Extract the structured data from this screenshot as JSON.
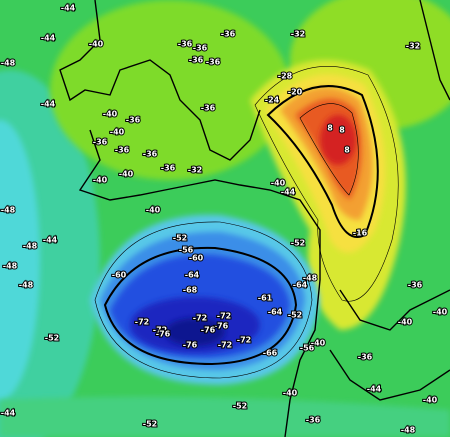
{
  "map": {
    "labels": [
      "-44",
      "-44",
      "-40",
      "-36",
      "-36",
      "-36",
      "-32",
      "-32",
      "-36",
      "-36",
      "-28",
      "-48",
      "-44",
      "-40",
      "-36",
      "-40",
      "-36",
      "-36",
      "-36",
      "-40",
      "-40",
      "-36",
      "-32",
      "-36",
      "-40",
      "-24",
      "-20",
      "8",
      "8",
      "8",
      "-40",
      "-44",
      "-48",
      "-44",
      "-52",
      "-56",
      "-60",
      "-48",
      "-48",
      "-48",
      "-60",
      "-64",
      "-68",
      "-52",
      "-16",
      "-36",
      "-72",
      "-72",
      "-72",
      "-72",
      "-76",
      "-76",
      "-76",
      "-72",
      "-72",
      "-76",
      "-52",
      "-64",
      "-61",
      "-64",
      "-56",
      "-66",
      "-52",
      "-40",
      "-44",
      "-48",
      "-52",
      "-44",
      "-40",
      "-36",
      "-40",
      "-36",
      "-40",
      "-48",
      "-52",
      "-40"
    ]
  }
}
